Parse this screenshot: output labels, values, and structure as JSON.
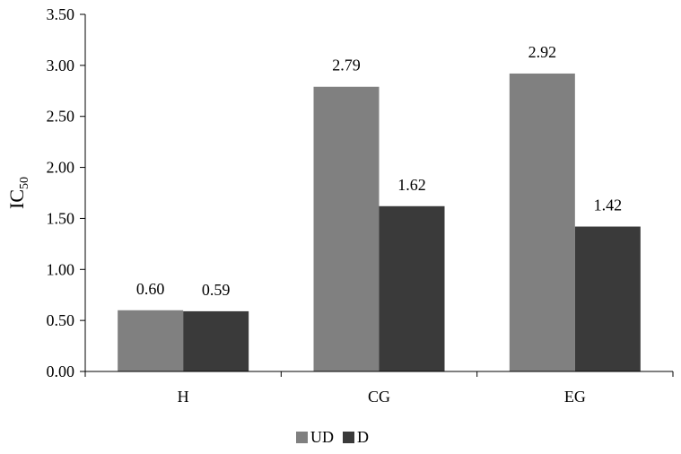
{
  "chart_data": {
    "type": "bar",
    "categories": [
      "H",
      "CG",
      "EG"
    ],
    "series": [
      {
        "name": "UD",
        "values": [
          0.6,
          2.79,
          2.92
        ],
        "labels": [
          "0.60",
          "2.79",
          "2.92"
        ],
        "color": "#808080"
      },
      {
        "name": "D",
        "values": [
          0.59,
          1.62,
          1.42
        ],
        "labels": [
          "0.59",
          "1.62",
          "1.42"
        ],
        "color": "#3a3a3a"
      }
    ],
    "title": "",
    "xlabel": "",
    "ylabel": {
      "main": "IC",
      "sub": "50"
    },
    "ylim": [
      0,
      3.5
    ],
    "yticks": [
      "0.00",
      "0.50",
      "1.00",
      "1.50",
      "2.00",
      "2.50",
      "3.00",
      "3.50"
    ],
    "grid": false,
    "legend": {
      "position": "bottom",
      "entries": [
        "UD",
        "D"
      ]
    }
  }
}
